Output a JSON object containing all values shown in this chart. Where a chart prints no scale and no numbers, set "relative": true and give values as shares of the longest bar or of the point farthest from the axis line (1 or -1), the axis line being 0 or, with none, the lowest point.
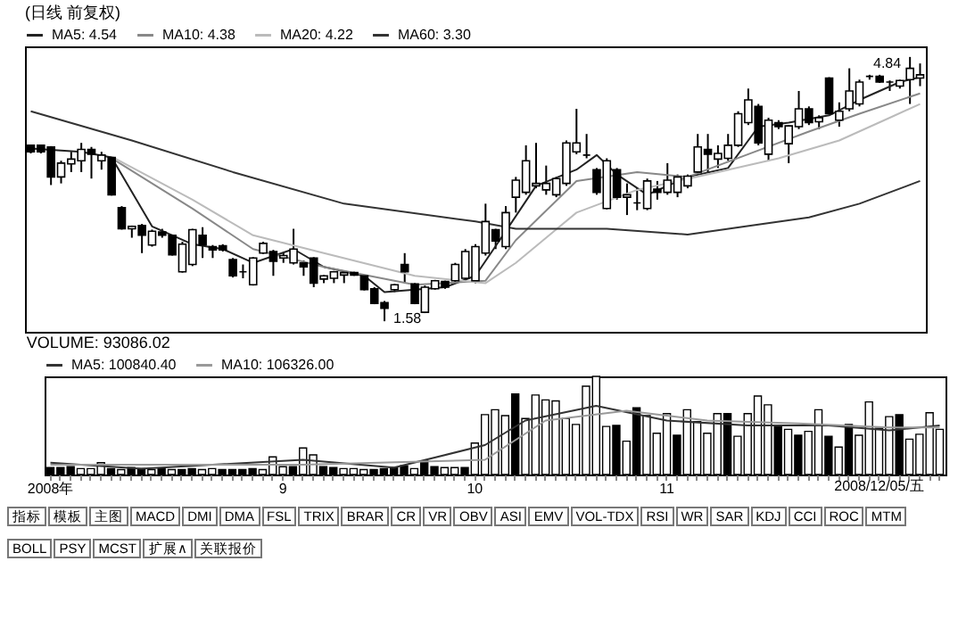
{
  "chart_data": [
    {
      "type": "candlestick",
      "title": "(日线 前复权)",
      "legend": "top left",
      "tick_labels": false,
      "categories": [
        null,
        null,
        null,
        null,
        null,
        null,
        null,
        null,
        null,
        null,
        null,
        null,
        null,
        null,
        null,
        null,
        null,
        null,
        null,
        null,
        null,
        null,
        null,
        null,
        null,
        null,
        null,
        null,
        null,
        null,
        null,
        null,
        null,
        null,
        null,
        null,
        null,
        null,
        null,
        null,
        null,
        null,
        null,
        null,
        null,
        null,
        null,
        null,
        null,
        null,
        null,
        null,
        null,
        null,
        null,
        null,
        null,
        null,
        null,
        null,
        null,
        null,
        null,
        null,
        null,
        null,
        null,
        null,
        null,
        null,
        null,
        null,
        null,
        null,
        null,
        null,
        null,
        null,
        null,
        null,
        null,
        null,
        null,
        null,
        null,
        null,
        null,
        null,
        null
      ],
      "ohlc": [
        [
          3.75,
          3.76,
          3.65,
          3.67
        ],
        [
          3.75,
          3.76,
          3.65,
          3.67
        ],
        [
          3.73,
          3.74,
          3.26,
          3.36
        ],
        [
          3.36,
          3.56,
          3.28,
          3.53
        ],
        [
          3.52,
          3.67,
          3.42,
          3.58
        ],
        [
          3.56,
          3.78,
          3.42,
          3.7
        ],
        [
          3.7,
          3.73,
          3.34,
          3.64
        ],
        [
          3.56,
          3.67,
          3.45,
          3.63
        ],
        [
          3.6,
          3.61,
          3.13,
          3.14
        ],
        [
          2.98,
          3.0,
          2.71,
          2.72
        ],
        [
          2.72,
          2.76,
          2.61,
          2.75
        ],
        [
          2.76,
          2.78,
          2.42,
          2.64
        ],
        [
          2.52,
          2.71,
          2.5,
          2.69
        ],
        [
          2.68,
          2.72,
          2.61,
          2.64
        ],
        [
          2.64,
          2.65,
          2.39,
          2.4
        ],
        [
          2.19,
          2.56,
          2.18,
          2.53
        ],
        [
          2.28,
          2.72,
          2.26,
          2.71
        ],
        [
          2.64,
          2.74,
          2.36,
          2.52
        ],
        [
          2.5,
          2.52,
          2.36,
          2.46
        ],
        [
          2.51,
          2.53,
          2.44,
          2.46
        ],
        [
          2.34,
          2.36,
          2.12,
          2.14
        ],
        [
          2.19,
          2.28,
          2.11,
          2.19
        ],
        [
          2.03,
          2.37,
          2.02,
          2.36
        ],
        [
          2.42,
          2.56,
          2.41,
          2.54
        ],
        [
          2.44,
          2.46,
          2.14,
          2.32
        ],
        [
          2.36,
          2.42,
          2.3,
          2.39
        ],
        [
          2.3,
          2.72,
          2.28,
          2.47
        ],
        [
          2.3,
          2.33,
          2.14,
          2.25
        ],
        [
          2.36,
          2.37,
          2.0,
          2.05
        ],
        [
          2.1,
          2.15,
          2.05,
          2.14
        ],
        [
          2.11,
          2.2,
          2.05,
          2.19
        ],
        [
          2.15,
          2.2,
          2.05,
          2.18
        ],
        [
          2.18,
          2.19,
          2.14,
          2.15
        ],
        [
          2.14,
          2.15,
          1.96,
          1.97
        ],
        [
          1.98,
          2.0,
          1.79,
          1.8
        ],
        [
          1.81,
          1.83,
          1.58,
          1.74
        ],
        [
          1.97,
          2.04,
          1.94,
          2.03
        ],
        [
          2.28,
          2.42,
          2.05,
          2.19
        ],
        [
          2.04,
          2.05,
          1.79,
          1.8
        ],
        [
          1.69,
          2.02,
          1.68,
          2.0
        ],
        [
          1.98,
          2.09,
          1.97,
          2.08
        ],
        [
          2.07,
          2.08,
          1.98,
          2.0
        ],
        [
          2.08,
          2.3,
          2.05,
          2.28
        ],
        [
          2.11,
          2.47,
          2.08,
          2.44
        ],
        [
          2.08,
          2.53,
          2.05,
          2.5
        ],
        [
          2.42,
          3.03,
          2.39,
          2.81
        ],
        [
          2.71,
          2.72,
          2.47,
          2.57
        ],
        [
          2.5,
          3.0,
          2.47,
          2.92
        ],
        [
          3.11,
          3.36,
          2.92,
          3.32
        ],
        [
          3.17,
          3.75,
          3.14,
          3.56
        ],
        [
          3.25,
          3.78,
          3.22,
          3.28
        ],
        [
          3.2,
          3.5,
          3.14,
          3.28
        ],
        [
          3.14,
          3.36,
          3.11,
          3.34
        ],
        [
          3.28,
          3.81,
          3.25,
          3.78
        ],
        [
          3.67,
          4.2,
          3.64,
          3.78
        ],
        [
          3.63,
          3.89,
          3.59,
          3.63
        ],
        [
          3.45,
          3.47,
          3.14,
          3.17
        ],
        [
          2.97,
          3.59,
          2.96,
          3.56
        ],
        [
          3.45,
          3.47,
          3.08,
          3.11
        ],
        [
          3.11,
          3.28,
          2.89,
          3.14
        ],
        [
          3.04,
          3.22,
          2.95,
          3.04
        ],
        [
          2.97,
          3.34,
          2.95,
          3.31
        ],
        [
          3.21,
          3.31,
          3.08,
          3.17
        ],
        [
          3.17,
          3.53,
          3.14,
          3.32
        ],
        [
          3.17,
          3.39,
          3.11,
          3.36
        ],
        [
          3.25,
          3.39,
          3.22,
          3.37
        ],
        [
          3.42,
          3.89,
          3.39,
          3.73
        ],
        [
          3.7,
          3.89,
          3.42,
          3.64
        ],
        [
          3.58,
          3.75,
          3.47,
          3.65
        ],
        [
          3.59,
          3.89,
          3.56,
          3.75
        ],
        [
          3.75,
          4.17,
          3.73,
          4.14
        ],
        [
          4.03,
          4.45,
          4.0,
          4.31
        ],
        [
          4.23,
          4.26,
          3.75,
          3.78
        ],
        [
          3.64,
          4.09,
          3.56,
          4.06
        ],
        [
          4.03,
          4.06,
          3.95,
          3.98
        ],
        [
          3.77,
          4.0,
          3.53,
          3.99
        ],
        [
          3.98,
          4.42,
          3.95,
          4.2
        ],
        [
          4.2,
          4.23,
          4.0,
          4.03
        ],
        [
          4.04,
          4.12,
          3.95,
          4.09
        ],
        [
          4.58,
          4.59,
          4.13,
          4.14
        ],
        [
          4.06,
          4.28,
          3.98,
          4.17
        ],
        [
          4.2,
          4.7,
          4.17,
          4.42
        ],
        [
          4.26,
          4.56,
          4.23,
          4.53
        ],
        [
          4.6,
          4.62,
          4.56,
          4.6
        ],
        [
          4.6,
          4.62,
          4.52,
          4.53
        ],
        [
          4.53,
          4.55,
          4.42,
          4.53
        ],
        [
          4.48,
          4.56,
          4.45,
          4.55
        ],
        [
          4.56,
          4.84,
          4.26,
          4.7
        ],
        [
          4.58,
          4.76,
          4.48,
          4.62
        ]
      ],
      "series": [
        {
          "name": "MA5: 4.54",
          "color": "#222222",
          "type": "line",
          "values": [
            3.71,
            null,
            null,
            null,
            null,
            3.67,
            null,
            null,
            3.6,
            null,
            null,
            null,
            2.75,
            null,
            null,
            null,
            2.53,
            null,
            null,
            2.47,
            null,
            null,
            2.3,
            null,
            null,
            null,
            2.47,
            null,
            null,
            2.25,
            null,
            null,
            null,
            2.14,
            null,
            1.94,
            null,
            null,
            1.97,
            null,
            null,
            2.0,
            null,
            null,
            2.14,
            null,
            null,
            2.69,
            null,
            null,
            3.25,
            null,
            null,
            null,
            3.45,
            null,
            3.63,
            null,
            3.39,
            null,
            null,
            3.14,
            null,
            null,
            null,
            3.36,
            null,
            null,
            null,
            3.47,
            null,
            null,
            3.98,
            null,
            null,
            4.03,
            null,
            null,
            null,
            4.12,
            null,
            null,
            4.31,
            null,
            null,
            null,
            4.53,
            null,
            4.59
          ]
        },
        {
          "name": "MA10: 4.38",
          "color": "#888888",
          "type": "line",
          "values": [
            null,
            null,
            null,
            null,
            null,
            null,
            null,
            null,
            3.59,
            null,
            null,
            null,
            null,
            null,
            null,
            null,
            2.97,
            null,
            null,
            null,
            null,
            null,
            2.47,
            null,
            null,
            null,
            null,
            null,
            null,
            2.25,
            null,
            null,
            null,
            null,
            null,
            null,
            null,
            null,
            2.03,
            null,
            null,
            null,
            null,
            null,
            null,
            2.08,
            null,
            null,
            2.58,
            null,
            null,
            null,
            null,
            null,
            3.31,
            null,
            null,
            null,
            null,
            null,
            3.42,
            null,
            null,
            null,
            null,
            3.36,
            null,
            null,
            null,
            null,
            null,
            3.64,
            null,
            null,
            null,
            null,
            null,
            3.92,
            null,
            null,
            null,
            null,
            4.14,
            null,
            null,
            null,
            null,
            null,
            4.39
          ]
        },
        {
          "name": "MA20: 4.22",
          "color": "#bbbbbb",
          "type": "line",
          "values": [
            null,
            null,
            null,
            null,
            null,
            null,
            null,
            null,
            3.61,
            null,
            null,
            null,
            null,
            null,
            null,
            null,
            3.08,
            null,
            null,
            null,
            null,
            null,
            2.64,
            null,
            null,
            null,
            null,
            null,
            null,
            2.42,
            null,
            null,
            null,
            null,
            null,
            null,
            null,
            null,
            2.14,
            null,
            null,
            null,
            null,
            null,
            null,
            2.05,
            null,
            null,
            2.3,
            null,
            null,
            null,
            null,
            null,
            2.92,
            null,
            null,
            null,
            null,
            null,
            3.2,
            null,
            null,
            null,
            null,
            null,
            null,
            null,
            3.42,
            null,
            null,
            null,
            null,
            null,
            3.59,
            null,
            null,
            null,
            null,
            null,
            3.81,
            null,
            null,
            null,
            null,
            4.09,
            null,
            null,
            4.26
          ]
        },
        {
          "name": "MA60: 3.30",
          "color": "#333333",
          "type": "line",
          "values": [
            4.17,
            null,
            null,
            null,
            null,
            null,
            null,
            null,
            null,
            null,
            3.81,
            null,
            null,
            null,
            null,
            null,
            null,
            null,
            null,
            null,
            3.42,
            null,
            null,
            null,
            null,
            null,
            null,
            null,
            null,
            null,
            null,
            3.03,
            null,
            null,
            null,
            null,
            null,
            null,
            null,
            null,
            null,
            null,
            null,
            null,
            2.81,
            null,
            null,
            null,
            2.72,
            null,
            null,
            null,
            null,
            null,
            null,
            null,
            null,
            2.72,
            null,
            null,
            null,
            null,
            null,
            null,
            null,
            2.65,
            null,
            null,
            null,
            null,
            null,
            null,
            null,
            null,
            null,
            null,
            null,
            2.86,
            null,
            null,
            null,
            null,
            3.03,
            null,
            null,
            null,
            null,
            null,
            3.31
          ]
        }
      ],
      "annotations": [
        "4.84",
        "1.58"
      ]
    },
    {
      "type": "bar",
      "relative": true,
      "title": "VOLUME: 93086.02",
      "legend": "top left",
      "tick_labels": "x",
      "categories": [
        "2008年",
        null,
        null,
        null,
        null,
        null,
        null,
        null,
        null,
        null,
        null,
        null,
        null,
        null,
        null,
        null,
        null,
        null,
        null,
        null,
        null,
        null,
        null,
        "9",
        null,
        null,
        null,
        null,
        null,
        null,
        null,
        null,
        null,
        null,
        null,
        null,
        null,
        null,
        null,
        null,
        null,
        null,
        "10",
        null,
        null,
        null,
        null,
        null,
        null,
        null,
        null,
        null,
        null,
        null,
        null,
        null,
        null,
        null,
        null,
        null,
        null,
        "11",
        null,
        null,
        null,
        null,
        null,
        null,
        null,
        null,
        null,
        null,
        null,
        null,
        null,
        null,
        null,
        null,
        null,
        null,
        null,
        null,
        null,
        null,
        null,
        null,
        null,
        null,
        null
      ],
      "series": [
        {
          "type": "bar",
          "values": [
            0.07,
            0.07,
            0.08,
            0.06,
            0.06,
            0.12,
            0.06,
            0.05,
            0.07,
            0.06,
            0.05,
            0.06,
            0.05,
            0.05,
            0.06,
            0.05,
            0.06,
            0.05,
            0.05,
            0.05,
            0.06,
            0.05,
            0.18,
            0.08,
            0.08,
            0.27,
            0.2,
            0.08,
            0.07,
            0.06,
            0.06,
            0.05,
            0.05,
            0.06,
            0.07,
            0.09,
            0.06,
            0.14,
            0.08,
            0.07,
            0.07,
            0.07,
            0.32,
            0.61,
            0.66,
            0.6,
            0.82,
            0.57,
            0.81,
            0.76,
            0.75,
            0.57,
            0.51,
            0.9,
            1.0,
            0.49,
            0.5,
            0.34,
            0.68,
            0.6,
            0.42,
            0.62,
            0.4,
            0.66,
            0.54,
            0.42,
            0.62,
            0.62,
            0.39,
            0.62,
            0.8,
            0.71,
            0.49,
            0.46,
            0.4,
            0.44,
            0.66,
            0.39,
            0.28,
            0.51,
            0.4,
            0.74,
            0.47,
            0.59,
            0.61,
            0.36,
            0.41,
            0.63,
            0.46
          ],
          "colors": [
            "#000000",
            "#000000",
            "#000000",
            "#ffffff",
            "#ffffff",
            "#ffffff",
            "#000000",
            "#ffffff",
            "#000000",
            "#000000",
            "#ffffff",
            "#000000",
            "#ffffff",
            "#000000",
            "#000000",
            "#ffffff",
            "#ffffff",
            "#000000",
            "#000000",
            "#000000",
            "#000000",
            "#ffffff",
            "#ffffff",
            "#ffffff",
            "#000000",
            "#ffffff",
            "#ffffff",
            "#000000",
            "#000000",
            "#ffffff",
            "#ffffff",
            "#ffffff",
            "#000000",
            "#000000",
            "#000000",
            "#000000",
            "#ffffff",
            "#000000",
            "#000000",
            "#ffffff",
            "#ffffff",
            "#000000",
            "#ffffff",
            "#ffffff",
            "#ffffff",
            "#ffffff",
            "#000000",
            "#ffffff",
            "#ffffff",
            "#ffffff",
            "#ffffff",
            "#ffffff",
            "#ffffff",
            "#ffffff",
            "#ffffff",
            "#ffffff",
            "#000000",
            "#ffffff",
            "#000000",
            "#ffffff",
            "#ffffff",
            "#ffffff",
            "#000000",
            "#ffffff",
            "#ffffff",
            "#ffffff",
            "#ffffff",
            "#000000",
            "#ffffff",
            "#ffffff",
            "#ffffff",
            "#ffffff",
            "#000000",
            "#ffffff",
            "#000000",
            "#ffffff",
            "#ffffff",
            "#000000",
            "#ffffff",
            "#000000",
            "#ffffff",
            "#ffffff",
            "#ffffff",
            "#ffffff",
            "#000000",
            "#ffffff",
            "#ffffff",
            "#ffffff",
            "#ffffff"
          ]
        },
        {
          "name": "MA5: 100840.40",
          "color": "#333333",
          "type": "line",
          "values": [
            0.12,
            null,
            null,
            null,
            null,
            null,
            null,
            null,
            null,
            0.06,
            null,
            null,
            null,
            null,
            null,
            null,
            null,
            null,
            null,
            null,
            null,
            null,
            null,
            null,
            null,
            0.15,
            null,
            null,
            null,
            null,
            null,
            null,
            null,
            null,
            0.07,
            null,
            null,
            null,
            null,
            null,
            null,
            null,
            null,
            0.3,
            null,
            null,
            null,
            0.55,
            null,
            null,
            null,
            null,
            null,
            null,
            0.7,
            null,
            null,
            null,
            null,
            null,
            null,
            0.55,
            null,
            null,
            null,
            null,
            null,
            null,
            null,
            0.5,
            null,
            null,
            null,
            null,
            null,
            null,
            null,
            0.5,
            null,
            null,
            null,
            null,
            null,
            0.45,
            null,
            null,
            null,
            null,
            0.5
          ]
        },
        {
          "name": "MA10: 106326.00",
          "color": "#999999",
          "type": "line",
          "values": [
            0.1,
            null,
            null,
            null,
            null,
            null,
            null,
            null,
            null,
            null,
            null,
            null,
            null,
            null,
            null,
            null,
            null,
            null,
            null,
            null,
            null,
            null,
            null,
            null,
            null,
            0.1,
            null,
            null,
            null,
            null,
            null,
            null,
            null,
            null,
            null,
            null,
            null,
            null,
            null,
            null,
            null,
            null,
            null,
            0.15,
            null,
            null,
            null,
            null,
            null,
            0.55,
            null,
            null,
            null,
            null,
            null,
            null,
            null,
            0.65,
            null,
            null,
            null,
            null,
            null,
            null,
            null,
            0.55,
            null,
            null,
            null,
            null,
            null,
            null,
            null,
            null,
            0.52,
            null,
            null,
            null,
            null,
            null,
            null,
            null,
            null,
            0.48,
            null,
            null,
            null,
            null,
            0.48
          ]
        }
      ],
      "annotations": [
        "2008/12/05/五"
      ]
    },
    {
      "type": "other",
      "annotations": [
        "指标",
        "模板",
        "主图",
        "MACD",
        "DMI",
        "DMA",
        "FSL",
        "TRIX",
        "BRAR",
        "CR",
        "VR",
        "OBV",
        "ASI",
        "EMV",
        "VOL-TDX",
        "RSI",
        "WR",
        "SAR",
        "KDJ",
        "CCI",
        "ROC",
        "MTM",
        "BOLL",
        "PSY",
        "MCST",
        "扩展∧",
        "关联报价"
      ]
    }
  ]
}
